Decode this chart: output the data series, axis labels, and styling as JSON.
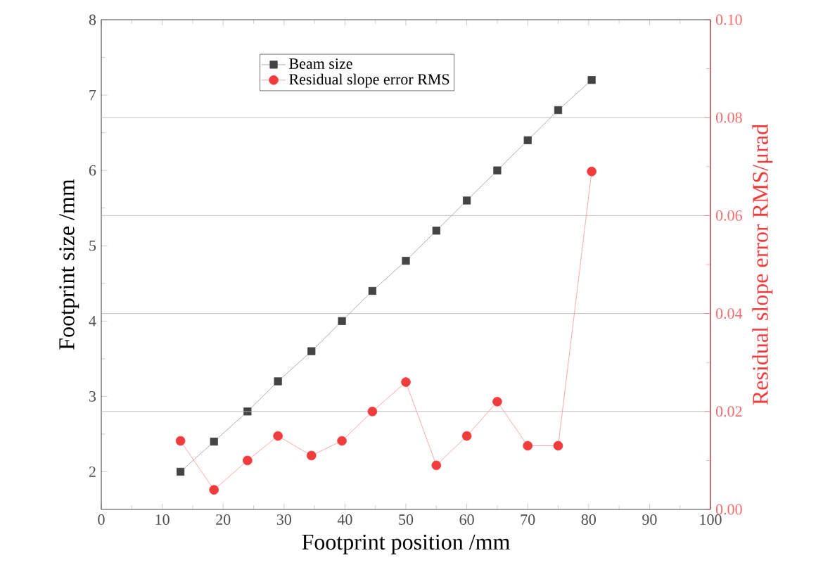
{
  "chart_data": {
    "type": "line",
    "xlabel": "Footprint position /mm",
    "ylabel": "Footprint size /mm",
    "y2label": "Residual slope error RMS/μrad",
    "xlim": [
      0,
      100
    ],
    "xticks": [
      0,
      10,
      20,
      30,
      40,
      50,
      60,
      70,
      80,
      90,
      100
    ],
    "ylim": [
      1.5,
      8
    ],
    "yticks": [
      2,
      3,
      4,
      5,
      6,
      7,
      8
    ],
    "y2lim": [
      0,
      0.1
    ],
    "y2ticks": [
      {
        "value": 0,
        "label": "0.00"
      },
      {
        "value": 0.02,
        "label": "0.02"
      },
      {
        "value": 0.04,
        "label": "0.04"
      },
      {
        "value": 0.06,
        "label": "0.06"
      },
      {
        "value": 0.08,
        "label": "0.08"
      },
      {
        "value": 0.1,
        "label": "0.10"
      }
    ],
    "x": [
      13,
      18.5,
      24,
      29,
      34.5,
      39.5,
      44.5,
      50,
      55,
      60,
      65,
      70,
      75,
      80.5
    ],
    "grid": "y2",
    "legend": "top left",
    "series": [
      {
        "name": "Beam size",
        "color": "#444444",
        "marker": "square",
        "values": [
          2.0,
          2.4,
          2.8,
          3.2,
          3.6,
          4.0,
          4.4,
          4.8,
          5.2,
          5.6,
          6.0,
          6.4,
          6.8,
          7.2
        ]
      },
      {
        "name": "Residual slope error RMS",
        "color": "#f03c3c",
        "marker": "circle",
        "axis": "y2",
        "values": [
          0.014,
          0.004,
          0.01,
          0.015,
          0.011,
          0.014,
          0.02,
          0.026,
          0.009,
          0.015,
          0.022,
          0.013,
          0.013,
          0.069
        ]
      }
    ]
  }
}
